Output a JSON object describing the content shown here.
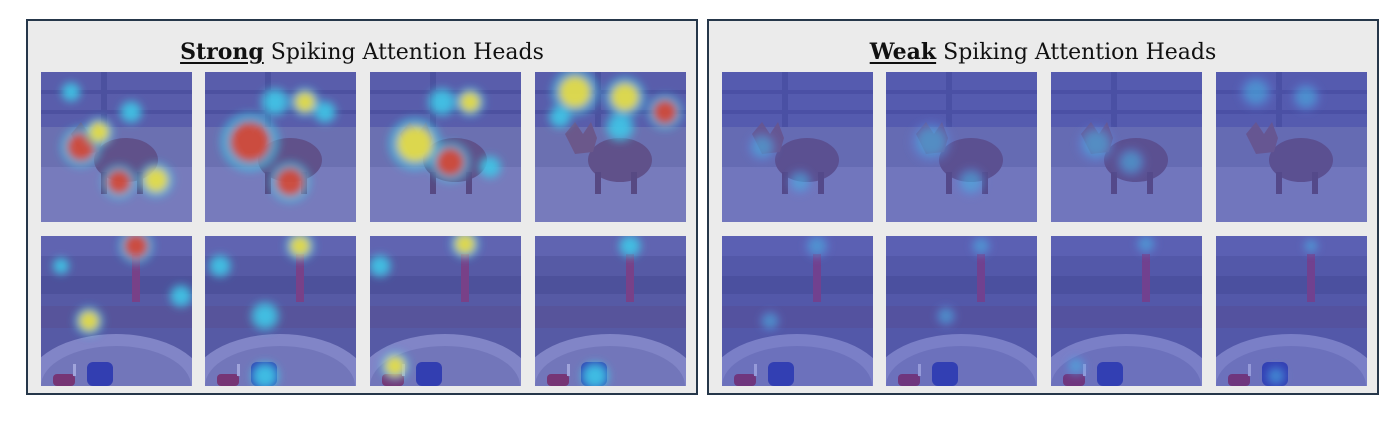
{
  "panels": [
    {
      "id": "strong",
      "title_emphasis": "Strong",
      "title_rest": " Spiking Attention Heads",
      "heat_intensity": "strong"
    },
    {
      "id": "weak",
      "title_emphasis": "Weak",
      "title_rest": " Spiking Attention Heads",
      "heat_intensity": "weak"
    }
  ],
  "rows": [
    {
      "scene": "fox-in-yard"
    },
    {
      "scene": "candles-on-table"
    }
  ],
  "heads_per_row": 4,
  "colors": {
    "panel_border": "#26374a",
    "panel_background": "#ebebeb",
    "overlay_blue": "#3b46c8",
    "heat_yellow": "#f5e33a",
    "heat_red": "#e0412a",
    "heat_cyan": "#3fc6e6"
  }
}
